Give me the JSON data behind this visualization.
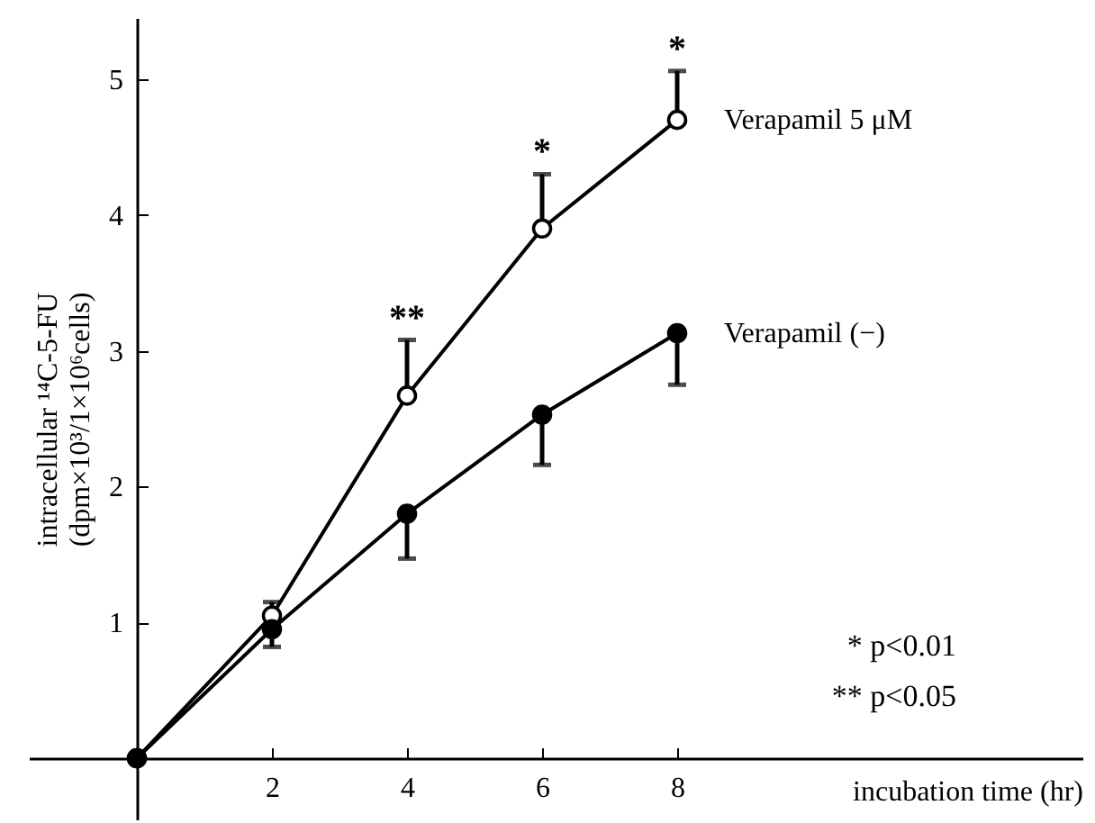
{
  "chart_data": {
    "type": "line",
    "x": [
      0,
      2,
      4,
      6,
      8
    ],
    "xlabel": "incubation time (hr)",
    "ylabel": "intracellular ¹⁴C-5-FU\n(dpm×10³/1×10⁶cells)",
    "xlim": [
      -1.6,
      14
    ],
    "ylim": [
      -0.45,
      5.45
    ],
    "xticks": [
      2,
      4,
      6,
      8
    ],
    "yticks": [
      1,
      2,
      3,
      4,
      5
    ],
    "grid": false,
    "marker": "circle",
    "line_style": "solid",
    "series": [
      {
        "name": "Verapamil 5 μM",
        "color": "#000000",
        "values": [
          0,
          1.05,
          2.67,
          3.9,
          4.7
        ],
        "errors": [
          null,
          [
            1.05,
            1.15
          ],
          [
            2.67,
            3.08
          ],
          [
            3.9,
            4.3
          ],
          [
            4.7,
            5.06
          ]
        ]
      },
      {
        "name": "Verapamil (−)",
        "color": "#000000",
        "values": [
          0,
          0.95,
          1.8,
          2.53,
          3.13
        ],
        "errors": [
          null,
          [
            0.82,
            0.95
          ],
          [
            1.47,
            1.8
          ],
          [
            2.16,
            2.53
          ],
          [
            2.75,
            3.13
          ]
        ]
      }
    ],
    "annotations": [
      {
        "text": "**",
        "x": 4,
        "y": 3.08
      },
      {
        "text": "*",
        "x": 6,
        "y": 4.3
      },
      {
        "text": "*",
        "x": 8,
        "y": 5.06
      },
      "* p<0.01",
      "** p<0.05"
    ]
  }
}
